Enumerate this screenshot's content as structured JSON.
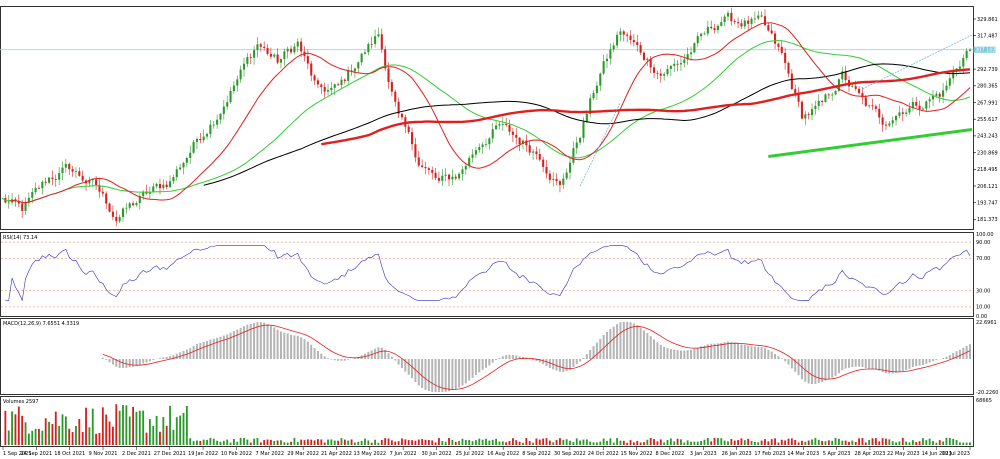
{
  "chart_data": {
    "type": "candlestick",
    "x_labels": [
      "1 Sep 2021",
      "24 Sep 2021",
      "18 Oct 2021",
      "9 Nov 2021",
      "2 Dec 2021",
      "27 Dec 2021",
      "19 Jan 2022",
      "10 Feb 2022",
      "7 Mar 2022",
      "29 Mar 2022",
      "21 Apr 2022",
      "13 May 2022",
      "7 Jun 2022",
      "30 Jun 2022",
      "25 Jul 2022",
      "16 Aug 2022",
      "8 Sep 2022",
      "30 Sep 2022",
      "24 Oct 2022",
      "15 Nov 2022",
      "8 Dec 2022",
      "3 Jan 2023",
      "26 Jan 2023",
      "17 Feb 2023",
      "14 Mar 2023",
      "5 Apr 2023",
      "28 Apr 2023",
      "22 May 2023",
      "14 Jun 2023",
      "10 Jul 2023"
    ],
    "price_axis": {
      "range": [
        175,
        338
      ],
      "ticks": [
        "329.861",
        "317.487",
        "292.739",
        "280.365",
        "267.991",
        "255.617",
        "243.243",
        "230.869",
        "218.495",
        "206.121",
        "193.747",
        "181.373"
      ],
      "tick_values": [
        329.861,
        317.487,
        292.739,
        280.365,
        267.991,
        255.617,
        243.243,
        230.869,
        218.495,
        206.121,
        193.747,
        181.373
      ],
      "current_price_label": "307.102",
      "current_price": 307.1
    },
    "price_path": [
      {
        "i": 0,
        "v": 196
      },
      {
        "i": 6,
        "v": 188
      },
      {
        "i": 14,
        "v": 212
      },
      {
        "i": 20,
        "v": 219
      },
      {
        "i": 28,
        "v": 205
      },
      {
        "i": 34,
        "v": 183
      },
      {
        "i": 42,
        "v": 198
      },
      {
        "i": 50,
        "v": 210
      },
      {
        "i": 58,
        "v": 240
      },
      {
        "i": 64,
        "v": 260
      },
      {
        "i": 70,
        "v": 285
      },
      {
        "i": 76,
        "v": 312
      },
      {
        "i": 82,
        "v": 298
      },
      {
        "i": 88,
        "v": 312
      },
      {
        "i": 94,
        "v": 276
      },
      {
        "i": 100,
        "v": 278
      },
      {
        "i": 106,
        "v": 300
      },
      {
        "i": 112,
        "v": 318
      },
      {
        "i": 118,
        "v": 256
      },
      {
        "i": 124,
        "v": 225
      },
      {
        "i": 130,
        "v": 208
      },
      {
        "i": 136,
        "v": 215
      },
      {
        "i": 142,
        "v": 238
      },
      {
        "i": 148,
        "v": 250
      },
      {
        "i": 154,
        "v": 240
      },
      {
        "i": 160,
        "v": 230
      },
      {
        "i": 166,
        "v": 205
      },
      {
        "i": 172,
        "v": 245
      },
      {
        "i": 178,
        "v": 290
      },
      {
        "i": 184,
        "v": 321
      },
      {
        "i": 190,
        "v": 305
      },
      {
        "i": 196,
        "v": 290
      },
      {
        "i": 202,
        "v": 298
      },
      {
        "i": 208,
        "v": 315
      },
      {
        "i": 214,
        "v": 330
      },
      {
        "i": 220,
        "v": 328
      },
      {
        "i": 226,
        "v": 326
      },
      {
        "i": 232,
        "v": 302
      },
      {
        "i": 238,
        "v": 258
      },
      {
        "i": 244,
        "v": 265
      },
      {
        "i": 250,
        "v": 288
      },
      {
        "i": 256,
        "v": 268
      },
      {
        "i": 262,
        "v": 254
      },
      {
        "i": 268,
        "v": 264
      },
      {
        "i": 274,
        "v": 268
      },
      {
        "i": 280,
        "v": 276
      },
      {
        "i": 288,
        "v": 311
      }
    ],
    "indicators": {
      "rsi": {
        "label": "RSI(14) 73.14",
        "value": 73.14,
        "levels": [
          "90.00",
          "70.00",
          "30.00",
          "10.00"
        ],
        "level_values": [
          90,
          70,
          30,
          10
        ],
        "top_label": "100.00",
        "bottom_label": "0.00"
      },
      "macd": {
        "label": "MACD(12,26,9) 7.6551 4.3319",
        "main": 7.6551,
        "signal": 4.3319,
        "top_label": "22.6961",
        "bottom_label": "-20.2260"
      },
      "volumes": {
        "label": "Volumes 2597",
        "value": 2597,
        "top_label": "68665"
      }
    },
    "colors": {
      "up": "#2b9a2b",
      "down": "#d62020",
      "ma_red": "#e11f1f",
      "ma_green": "#33cc33",
      "ma_black": "#000000",
      "rsi_line": "#2f2fbf",
      "level_line": "#e07a5f",
      "macd_hist": "#b5b5b5",
      "price_line": "#9fd6e0"
    },
    "grid": false
  }
}
